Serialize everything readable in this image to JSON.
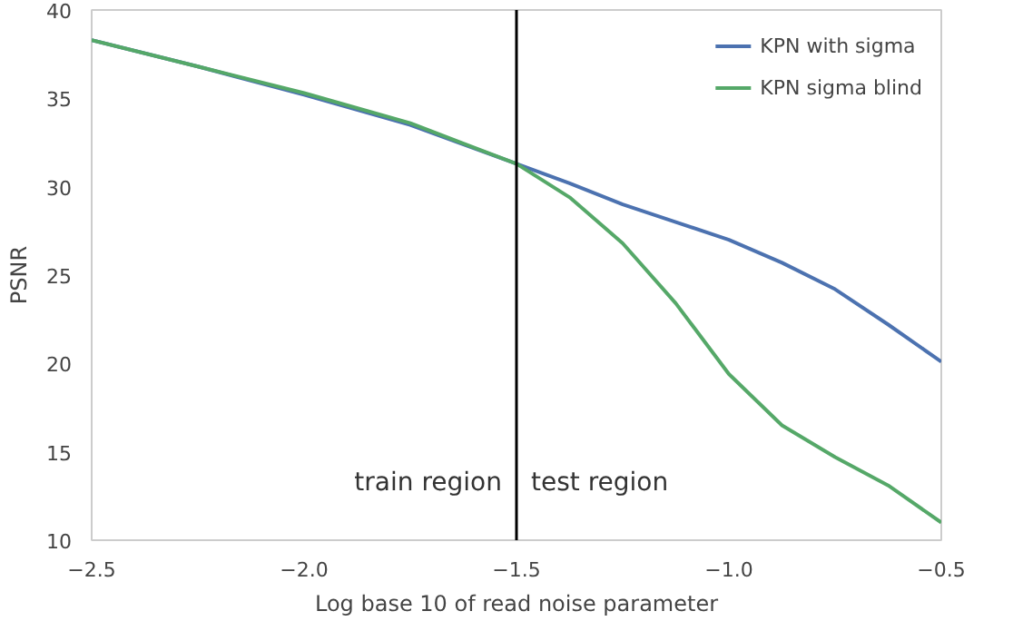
{
  "chart_data": {
    "type": "line",
    "xlabel": "Log base 10 of read noise parameter",
    "ylabel": "PSNR",
    "x": [
      -2.5,
      -2.25,
      -2.0,
      -1.75,
      -1.5,
      -1.375,
      -1.25,
      -1.125,
      -1.0,
      -0.875,
      -0.75,
      -0.625,
      -0.5
    ],
    "series": [
      {
        "name": "KPN with sigma",
        "color": "#4c72b0",
        "values": [
          38.3,
          36.8,
          35.2,
          33.5,
          31.3,
          30.2,
          29.0,
          28.0,
          27.0,
          25.7,
          24.2,
          22.2,
          20.1
        ]
      },
      {
        "name": "KPN sigma blind",
        "color": "#55a868",
        "values": [
          38.3,
          36.8,
          35.3,
          33.6,
          31.3,
          29.4,
          26.8,
          23.4,
          19.4,
          16.5,
          14.7,
          13.1,
          11.0
        ]
      }
    ],
    "xlim": [
      -2.5,
      -0.5
    ],
    "ylim": [
      10,
      40
    ],
    "xticks": [
      {
        "value": -2.5,
        "label": "−2.5"
      },
      {
        "value": -2.0,
        "label": "−2.0"
      },
      {
        "value": -1.5,
        "label": "−1.5"
      },
      {
        "value": -1.0,
        "label": "−1.0"
      },
      {
        "value": -0.5,
        "label": "−0.5"
      }
    ],
    "yticks": [
      10,
      15,
      20,
      25,
      30,
      35,
      40
    ],
    "ref_lines": [
      {
        "axis": "x",
        "value": -1.5,
        "color": "#000000"
      }
    ],
    "annotations": [
      "train region",
      "test region"
    ],
    "grid": false,
    "legend": "top right",
    "line_style": "solid"
  }
}
